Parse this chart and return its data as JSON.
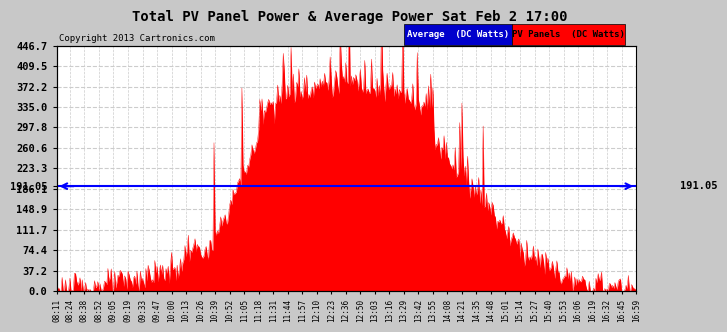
{
  "title": "Total PV Panel Power & Average Power Sat Feb 2 17:00",
  "copyright": "Copyright 2013 Cartronics.com",
  "average_value": 191.05,
  "y_max": 446.7,
  "y_ticks": [
    0.0,
    37.2,
    74.4,
    111.7,
    148.9,
    186.1,
    223.3,
    260.6,
    297.8,
    335.0,
    372.2,
    409.5,
    446.7
  ],
  "left_label": "191.05",
  "right_label": "191.05",
  "bg_color": "#c8c8c8",
  "plot_bg_color": "#ffffff",
  "fill_color": "#ff0000",
  "line_color": "#ff0000",
  "avg_line_color": "#0000ff",
  "legend_avg_bg": "#0000cc",
  "legend_pv_bg": "#ff0000",
  "grid_color": "#cccccc",
  "x_labels": [
    "08:11",
    "08:24",
    "08:38",
    "08:52",
    "09:05",
    "09:19",
    "09:33",
    "09:47",
    "10:00",
    "10:13",
    "10:26",
    "10:39",
    "10:52",
    "11:05",
    "11:18",
    "11:31",
    "11:44",
    "11:57",
    "12:10",
    "12:23",
    "12:36",
    "12:50",
    "13:03",
    "13:16",
    "13:29",
    "13:42",
    "13:55",
    "14:08",
    "14:21",
    "14:35",
    "14:48",
    "15:01",
    "15:14",
    "15:27",
    "15:40",
    "15:53",
    "16:06",
    "16:19",
    "16:32",
    "16:45",
    "16:59"
  ],
  "num_points": 520
}
